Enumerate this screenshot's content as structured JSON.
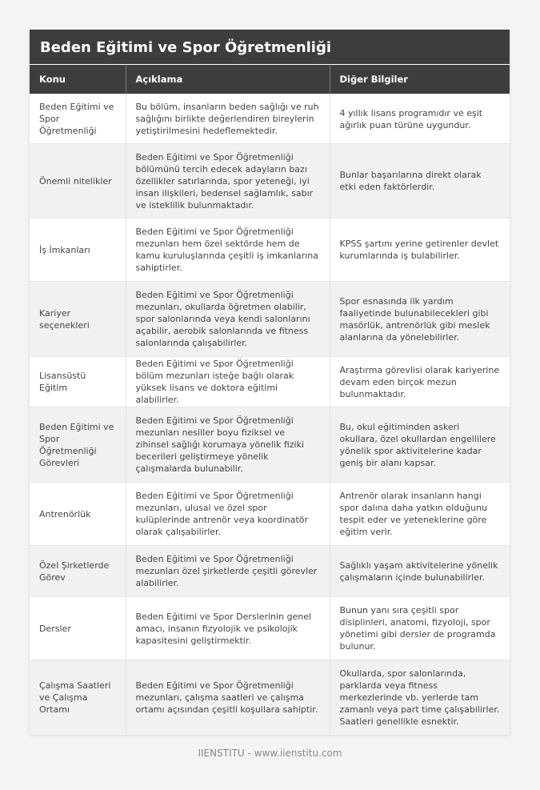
{
  "title": "Beden Eğitimi ve Spor Öğretmenliği",
  "headers": [
    "Konu",
    "Açıklama",
    "Diğer Bilgiler"
  ],
  "rows": [
    [
      "Beden Eğitimi ve Spor Öğretmenliği",
      "Bu bölüm, insanların beden sağlığı ve ruh sağlığını birlikte değerlendiren bireylerin yetiştirilmesini hedeflemektedir.",
      "4 yıllık lisans programıdır ve eşit ağırlık puan türüne uygundur."
    ],
    [
      "Önemli nitelikler",
      "Beden Eğitimi ve Spor Öğretmenliği bölümünü tercih edecek adayların bazı özellikler satırlarında, spor yeteneği, iyi insan ilişkileri, bedensel sağlamlık, sabır ve isteklilik bulunmaktadır.",
      "Bunlar başarılarına direkt olarak etki eden faktörlerdir."
    ],
    [
      "İş İmkanları",
      "Beden Eğitimi ve Spor Öğretmenliği mezunları hem özel sektörde hem de kamu kuruluşlarında çeşitli iş imkanlarına sahiptirler.",
      "KPSS şartını yerine getirenler devlet kurumlarında iş bulabilirler."
    ],
    [
      "Kariyer seçenekleri",
      "Beden Eğitimi ve Spor Öğretmenliği mezunları, okullarda öğretmen olabilir, spor salonlarında veya kendi salonlarını açabilir, aerobik salonlarında ve fitness salonlarında çalışabilirler.",
      "Spor esnasında ilk yardım faaliyetinde bulunabilecekleri gibi masörlük, antrenörlük gibi meslek alanlarına da yönelebilirler."
    ],
    [
      "Lisansüstü Eğitim",
      "Beden Eğitimi ve Spor Öğretmenliği bölüm mezunları isteğe bağlı olarak yüksek lisans ve doktora eğitimi alabilirler.",
      "Araştırma görevlisi olarak kariyerine devam eden birçok mezun bulunmaktadır."
    ],
    [
      "Beden Eğitimi ve Spor Öğretmenliği Görevleri",
      "Beden Eğitimi ve Spor Öğretmenliği mezunları nesiller boyu fiziksel ve zihinsel sağlığı korumaya yönelik fiziki becerileri geliştirmeye yönelik çalışmalarda bulunabilir.",
      "Bu, okul eğitiminden askeri okullara, özel okullardan engellilere yönelik spor aktivitelerine kadar geniş bir alanı kapsar."
    ],
    [
      "Antrenörlük",
      "Beden Eğitimi ve Spor Öğretmenliği mezunları, ulusal ve özel spor kulüplerinde antrenör veya koordinatör olarak çalışabilirler.",
      "Antrenör olarak insanların hangi spor dalına daha yatkın olduğunu tespit eder ve yeteneklerine göre eğitim verir."
    ],
    [
      "Özel Şirketlerde Görev",
      "Beden Eğitimi ve Spor Öğretmenliği mezunları özel şirketlerde çeşitli görevler alabilirler.",
      "Sağlıklı yaşam aktivitelerine yönelik çalışmaların içinde bulunabilirler."
    ],
    [
      "Dersler",
      "Beden Eğitimi ve Spor Derslerinin genel amacı, insanın fizyolojik ve psikolojik kapasitesini geliştirmektir.",
      "Bunun yanı sıra çeşitli spor disiplinleri, anatomi, fizyoloji, spor yönetimi gibi dersler de programda bulunur."
    ],
    [
      "Çalışma Saatleri ve Çalışma Ortamı",
      "Beden Eğitimi ve Spor Öğretmenliği mezunları, çalışma saatleri ve çalışma ortamı açısından çeşitli koşullara sahiptir.",
      "Okullarda, spor salonlarında, parklarda veya fitness merkezlerinde vb. yerlerde tam zamanlı veya part time çalışabilirler. Saatleri genellikle esnektir."
    ]
  ],
  "footer": "IIENSTITU - www.iienstitu.com"
}
